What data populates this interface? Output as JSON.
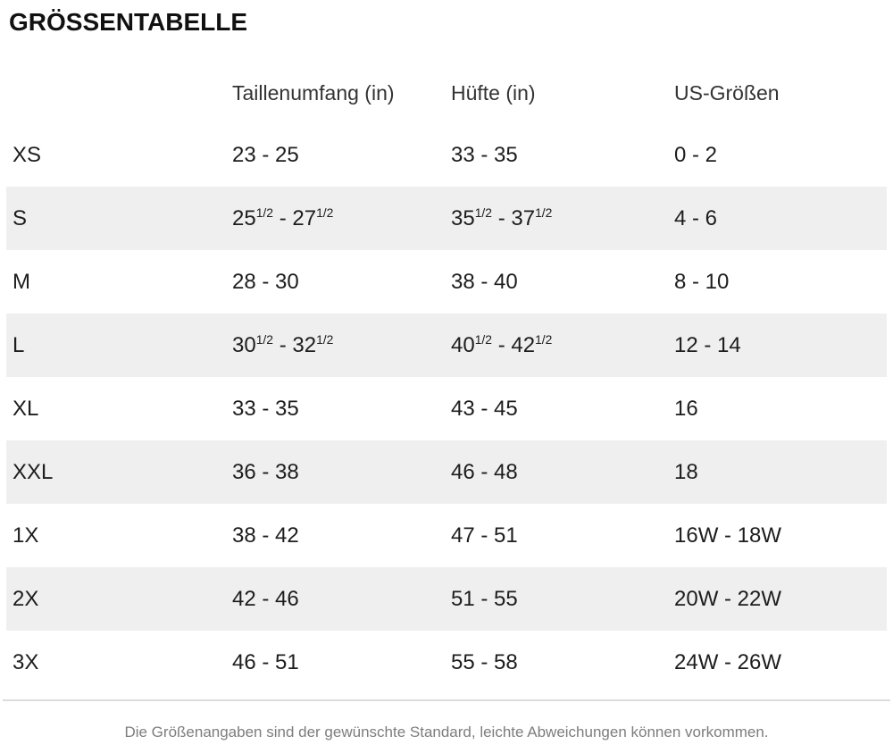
{
  "colors": {
    "stripe": "#efefef",
    "divider": "#dcdcdc",
    "heading_text": "#111111",
    "header_text": "#333333",
    "cell_text": "#1d1d1d",
    "footer_text": "#7d7d7d"
  },
  "page": {
    "title": "GRÖSSENTABELLE",
    "footer_note": "Die Größenangaben sind der gewünschte Standard, leichte Abweichungen können vorkommen."
  },
  "size_chart": {
    "columns": [
      "Taillenumfang (in)",
      "Hüfte (in)",
      "US-Größen"
    ],
    "fraction_marker": "[1/2]",
    "fraction_display": "1/2",
    "rows": [
      {
        "size": "XS",
        "waist": "23 - 25",
        "hip": "33 - 35",
        "us": "0 - 2"
      },
      {
        "size": "S",
        "waist": "25[1/2] - 27[1/2]",
        "hip": "35[1/2] - 37[1/2]",
        "us": "4 - 6"
      },
      {
        "size": "M",
        "waist": "28 - 30",
        "hip": "38 - 40",
        "us": "8 - 10"
      },
      {
        "size": "L",
        "waist": "30[1/2] - 32[1/2]",
        "hip": "40[1/2] - 42[1/2]",
        "us": "12 - 14"
      },
      {
        "size": "XL",
        "waist": "33 - 35",
        "hip": "43 - 45",
        "us": "16"
      },
      {
        "size": "XXL",
        "waist": "36 - 38",
        "hip": "46 - 48",
        "us": "18"
      },
      {
        "size": "1X",
        "waist": "38 - 42",
        "hip": "47 - 51",
        "us": "16W - 18W"
      },
      {
        "size": "2X",
        "waist": "42 - 46",
        "hip": "51 - 55",
        "us": "20W - 22W"
      },
      {
        "size": "3X",
        "waist": "46 - 51",
        "hip": "55 - 58",
        "us": "24W - 26W"
      }
    ]
  }
}
